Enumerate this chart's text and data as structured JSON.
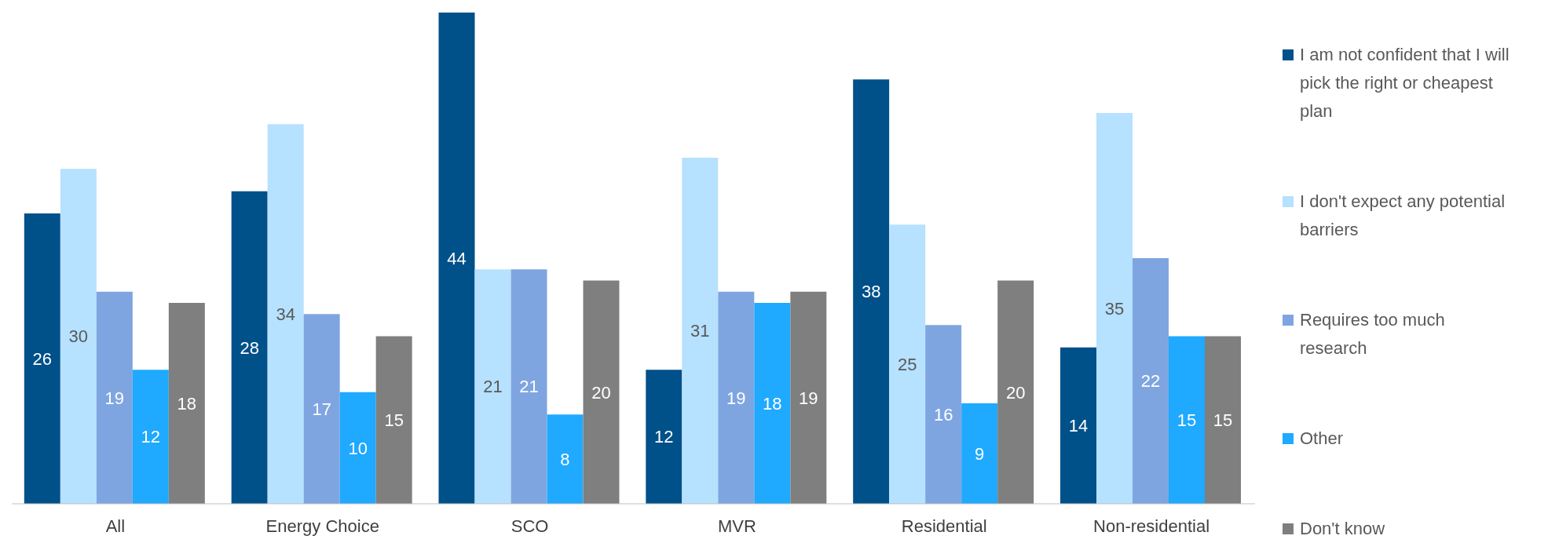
{
  "chart_data": {
    "type": "bar",
    "categories": [
      "All",
      "Energy Choice",
      "SCO",
      "MVR",
      "Residential",
      "Non-residential"
    ],
    "series": [
      {
        "name": "I am not confident that I will pick the right or cheapest  plan",
        "color": "#00508a",
        "values": [
          26,
          28,
          44,
          12,
          38,
          14
        ]
      },
      {
        "name": "I don't expect any potential barriers",
        "color": "#b6e1ff",
        "values": [
          30,
          34,
          21,
          31,
          25,
          35
        ]
      },
      {
        "name": "Requires too much research",
        "color": "#7fa5e1",
        "values": [
          19,
          17,
          21,
          19,
          16,
          22
        ]
      },
      {
        "name": "Other",
        "color": "#1fa9ff",
        "values": [
          12,
          10,
          8,
          18,
          9,
          15
        ]
      },
      {
        "name": "Don't know",
        "color": "#7f7f7f",
        "values": [
          18,
          15,
          20,
          19,
          20,
          15
        ]
      }
    ],
    "data_labels": true,
    "legend": "right",
    "grid": false
  }
}
